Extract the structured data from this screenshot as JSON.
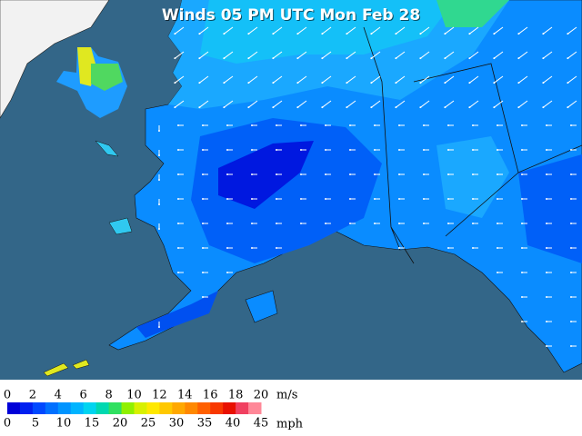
{
  "title": "Winds 05 PM UTC Mon Feb 28",
  "legend": {
    "ms_ticks": [
      0,
      2,
      4,
      6,
      8,
      10,
      12,
      14,
      16,
      18,
      20
    ],
    "ms_unit": "m/s",
    "mph_ticks": [
      0,
      5,
      10,
      15,
      20,
      25,
      30,
      35,
      40,
      45
    ],
    "mph_unit": "mph",
    "colors": [
      "#0000d8",
      "#0020f0",
      "#0048ff",
      "#0070ff",
      "#0094ff",
      "#00b4ff",
      "#00d4f0",
      "#00d8b0",
      "#30e060",
      "#90f000",
      "#d8f000",
      "#ffe800",
      "#ffc800",
      "#ffa800",
      "#ff8800",
      "#ff6000",
      "#f83800",
      "#e81000",
      "#f04060",
      "#ff8898"
    ]
  }
}
